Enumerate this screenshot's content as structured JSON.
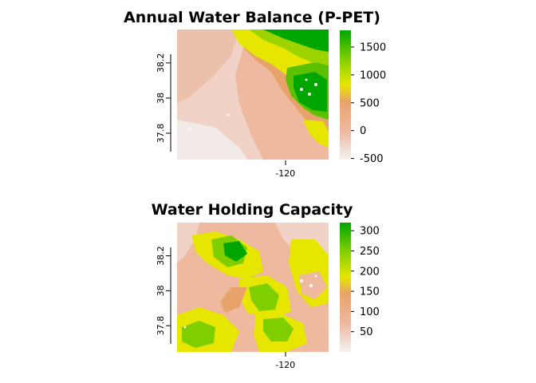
{
  "chart_data": [
    {
      "type": "heatmap",
      "title": "Annual Water Balance (P-PET)",
      "xlabel": "",
      "ylabel": "",
      "x_ticks": [
        -120
      ],
      "y_ticks": [
        37.8,
        38,
        38.2
      ],
      "xlim": [
        -120.55,
        -119.78
      ],
      "ylim": [
        37.65,
        38.39
      ],
      "legend_ticks": [
        -500,
        0,
        500,
        1000,
        1500
      ],
      "legend_range": [
        -520,
        1800
      ],
      "legend_position": "right",
      "colors": [
        "#f2f2f2",
        "#eeb99f",
        "#e6e600",
        "#00a600"
      ],
      "grid": false
    },
    {
      "type": "heatmap",
      "title": "Water Holding Capacity",
      "xlabel": "",
      "ylabel": "",
      "x_ticks": [
        -120
      ],
      "y_ticks": [
        37.8,
        38,
        38.2
      ],
      "xlim": [
        -120.55,
        -119.78
      ],
      "ylim": [
        37.65,
        38.39
      ],
      "legend_ticks": [
        50,
        100,
        150,
        200,
        250,
        300
      ],
      "legend_range": [
        0,
        320
      ],
      "legend_position": "right",
      "colors": [
        "#f2f2f2",
        "#eeb99f",
        "#e6e600",
        "#00a600"
      ],
      "grid": false
    }
  ]
}
